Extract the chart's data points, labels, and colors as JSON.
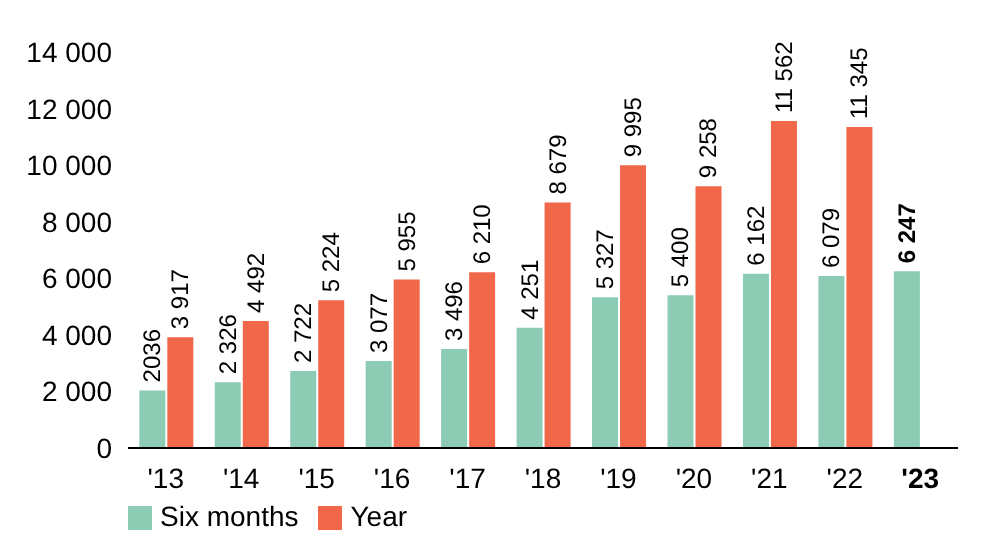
{
  "chart_data": {
    "type": "bar",
    "categories": [
      "'13",
      "'14",
      "'15",
      "'16",
      "'17",
      "'18",
      "'19",
      "'20",
      "'21",
      "'22",
      "'23"
    ],
    "series": [
      {
        "name": "Six months",
        "color": "#8ccbb4",
        "values": [
          2036,
          2326,
          2722,
          3077,
          3496,
          4251,
          5327,
          5400,
          6162,
          6079,
          6247
        ],
        "value_labels": [
          "2036",
          "2 326",
          "2 722",
          "3 077",
          "3 496",
          "4 251",
          "5 327",
          "5 400",
          "6 162",
          "6 079",
          "6 247"
        ]
      },
      {
        "name": "Year",
        "color": "#f0674a",
        "values": [
          3917,
          4492,
          5224,
          5955,
          6210,
          8679,
          9995,
          9258,
          11562,
          11345,
          null
        ],
        "value_labels": [
          "3 917",
          "4 492",
          "5 224",
          "5 955",
          "6 210",
          "8 679",
          "9 995",
          "9 258",
          "11 562",
          "11 345",
          null
        ]
      }
    ],
    "ylim": [
      0,
      14000
    ],
    "yticks": [
      {
        "value": 0,
        "label": "0"
      },
      {
        "value": 2000,
        "label": "2 000"
      },
      {
        "value": 4000,
        "label": "4 000"
      },
      {
        "value": 6000,
        "label": "6 000"
      },
      {
        "value": 8000,
        "label": "8 000"
      },
      {
        "value": 10000,
        "label": "10 000"
      },
      {
        "value": 12000,
        "label": "12 000"
      },
      {
        "value": 14000,
        "label": "14 000"
      }
    ],
    "grid": false,
    "legend": "bottom left"
  }
}
